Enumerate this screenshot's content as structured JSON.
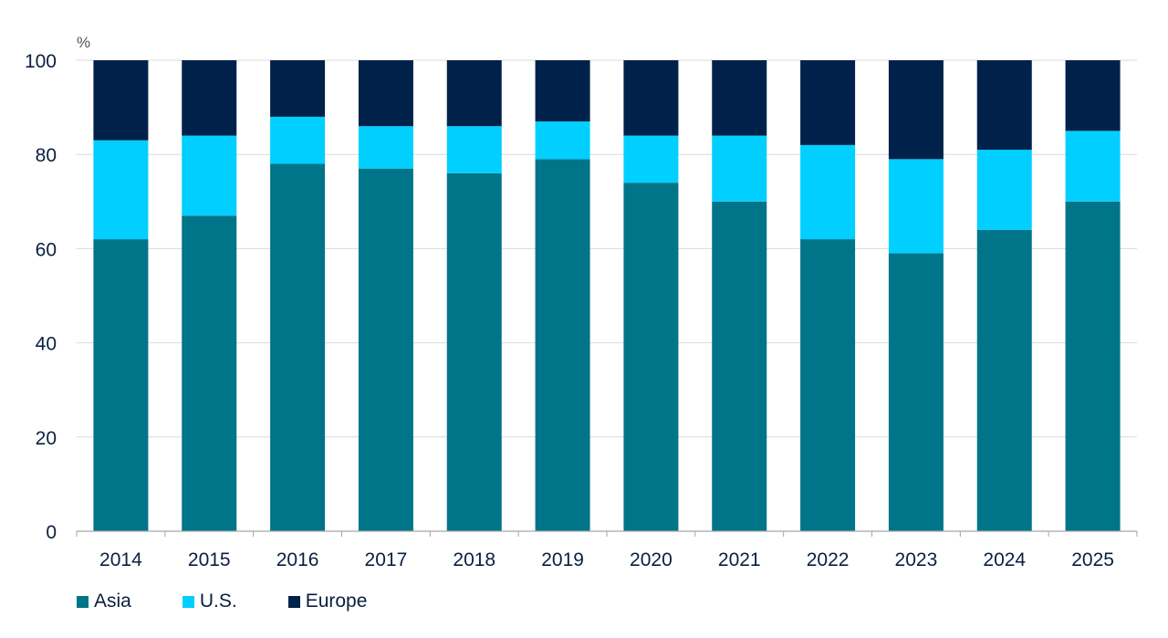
{
  "chart_data": {
    "type": "bar",
    "stacked": true,
    "unit_label": "%",
    "categories": [
      "2014",
      "2015",
      "2016",
      "2017",
      "2018",
      "2019",
      "2020",
      "2021",
      "2022",
      "2023",
      "2024",
      "2025"
    ],
    "series": [
      {
        "name": "Asia",
        "color": "#007488",
        "values": [
          62,
          67,
          78,
          77,
          76,
          79,
          74,
          70,
          62,
          59,
          64,
          70
        ]
      },
      {
        "name": "U.S.",
        "color": "#00cfff",
        "values": [
          21,
          17,
          10,
          9,
          10,
          8,
          10,
          14,
          20,
          20,
          17,
          15
        ]
      },
      {
        "name": "Europe",
        "color": "#00224a",
        "values": [
          17,
          16,
          12,
          14,
          14,
          13,
          16,
          16,
          18,
          21,
          19,
          15
        ]
      }
    ],
    "ylim": [
      0,
      100
    ],
    "yticks": [
      0,
      20,
      40,
      60,
      80,
      100
    ],
    "ytick_labels": [
      "0",
      "20",
      "40",
      "60",
      "80",
      "100"
    ],
    "grid": true,
    "legend_position": "bottom-left",
    "title": "",
    "xlabel": "",
    "ylabel": "%"
  }
}
